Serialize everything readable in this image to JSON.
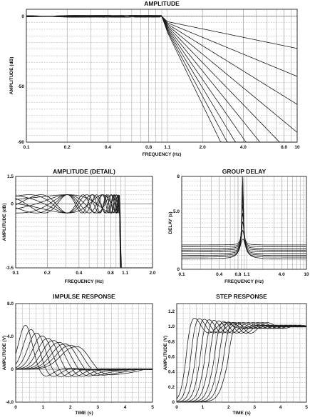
{
  "chart_data": [
    {
      "id": "amplitude",
      "type": "line",
      "title": "AMPLITUDE",
      "xlabel": "FREQUENCY (Hz)",
      "ylabel": "AMPLITUDE (dB)",
      "xscale": "log",
      "xlim": [
        0.1,
        10
      ],
      "ylim": [
        -90,
        5
      ],
      "x_ticks": [
        0.1,
        0.2,
        0.4,
        0.8,
        1.1,
        2.0,
        4.0,
        8.0,
        10
      ],
      "x_tick_labels": [
        "0.1",
        "0.2",
        "0.4",
        "0.8",
        "1.1",
        "2.0",
        "4.0",
        "8.0",
        "10"
      ],
      "y_ticks": [
        0,
        -50,
        -90
      ],
      "y_tick_labels": [
        "0",
        "-50",
        "-90"
      ],
      "grid": true,
      "series_desc": "filter orders 1-10",
      "orders": [
        1,
        2,
        3,
        4,
        5,
        6,
        7,
        8,
        9,
        10
      ]
    },
    {
      "id": "amplitude_detail",
      "type": "line",
      "title": "AMPLITUDE (DETAIL)",
      "xlabel": "FREQUENCY (Hz)",
      "ylabel": "AMPLITUDE (dB)",
      "xscale": "log",
      "xlim": [
        0.1,
        2.0
      ],
      "ylim": [
        -3.5,
        1.5
      ],
      "x_ticks": [
        0.1,
        0.2,
        0.4,
        0.8,
        1.1,
        2.0
      ],
      "x_tick_labels": [
        "0.1",
        "0.2",
        "0.4",
        "0.8",
        "1.1",
        "2.0"
      ],
      "y_ticks": [
        1.5,
        0,
        -3.5
      ],
      "y_tick_labels": [
        "1.5",
        "0",
        "-3.5"
      ],
      "grid": true,
      "orders": [
        2,
        3,
        4,
        5,
        6,
        7,
        8,
        9,
        10
      ]
    },
    {
      "id": "group_delay",
      "type": "line",
      "title": "GROUP DELAY",
      "xlabel": "FREQUENCY (Hz)",
      "ylabel": "DELAY (s)",
      "xscale": "log",
      "xlim": [
        0.1,
        10
      ],
      "ylim": [
        0,
        8
      ],
      "x_ticks": [
        0.1,
        0.4,
        0.8,
        1.1,
        4.0,
        10
      ],
      "x_tick_labels": [
        "0.1",
        "0.4",
        "0.8",
        "1.1",
        "4.0",
        "10"
      ],
      "y_ticks": [
        8,
        5.0,
        0
      ],
      "y_tick_labels": [
        "8",
        "5.0",
        "0"
      ],
      "grid": true,
      "orders": [
        2,
        3,
        4,
        5,
        6,
        7,
        8,
        9,
        10
      ]
    },
    {
      "id": "impulse_response",
      "type": "line",
      "title": "IMPULSE RESPONSE",
      "xlabel": "TIME (s)",
      "ylabel": "AMPLITUDE (V)",
      "xlim": [
        0,
        5
      ],
      "ylim": [
        -4.0,
        8.0
      ],
      "x_ticks": [
        0,
        1,
        2,
        3,
        4,
        5
      ],
      "x_tick_labels": [
        "0",
        "1",
        "2",
        "3",
        "4",
        "5"
      ],
      "y_ticks": [
        8.0,
        4.0,
        0,
        -4.0
      ],
      "y_tick_labels": [
        "8.0",
        "4.0",
        "0",
        "-4.0"
      ],
      "grid": true,
      "orders": [
        1,
        2,
        3,
        4,
        5,
        6,
        7,
        8,
        9,
        10
      ]
    },
    {
      "id": "step_response",
      "type": "line",
      "title": "STEP RESPONSE",
      "xlabel": "TIME (s)",
      "ylabel": "AMPLITUDE (V)",
      "xlim": [
        0,
        5
      ],
      "ylim": [
        0,
        1.3
      ],
      "x_ticks": [
        0,
        1,
        2,
        3,
        4,
        5
      ],
      "x_tick_labels": [
        "0",
        "1",
        "2",
        "3",
        "4",
        "5"
      ],
      "y_ticks": [
        1.2,
        1.0,
        0.8,
        0.6,
        0.4,
        0.2,
        0
      ],
      "y_tick_labels": [
        "1.2",
        "1.0",
        "0.8",
        "0.6",
        "0.4",
        "0.2",
        "0"
      ],
      "grid": true,
      "orders": [
        1,
        2,
        3,
        4,
        5,
        6,
        7,
        8,
        9,
        10
      ]
    }
  ]
}
